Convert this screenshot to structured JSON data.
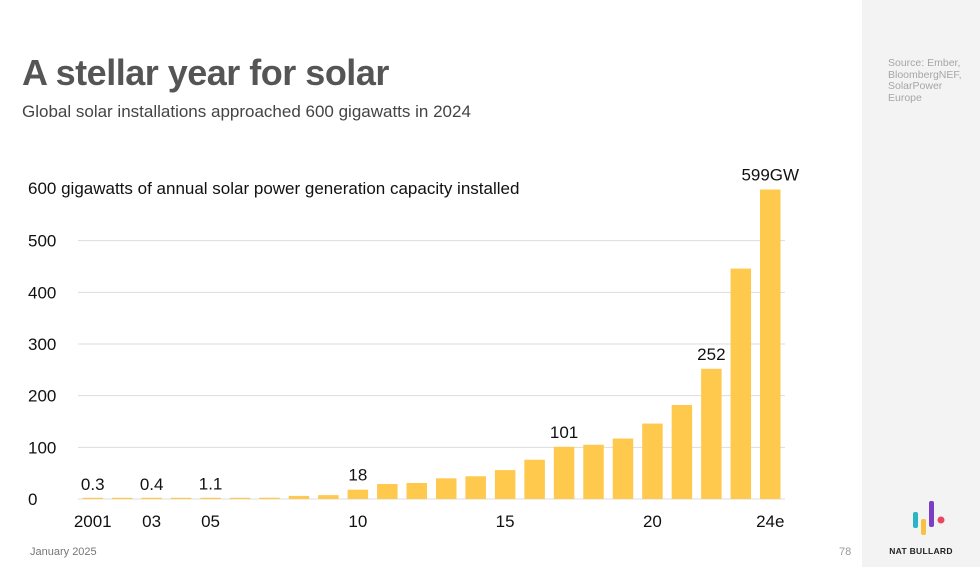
{
  "header": {
    "title": "A stellar year for solar",
    "subtitle": "Global solar installations approached 600 gigawatts in 2024"
  },
  "sidebar": {
    "source": "Source: Ember, BloombergNEF, SolarPower Europe",
    "brand": "NAT BULLARD",
    "logo_colors": [
      "#2bb5c4",
      "#f5c242",
      "#7b3fc7",
      "#e8475f"
    ]
  },
  "footer": {
    "date": "January 2025",
    "page": "78"
  },
  "chart_data": {
    "type": "bar",
    "title": "600 gigawatts of annual solar power generation capacity installed",
    "categories": [
      "2001",
      "2002",
      "2003",
      "2004",
      "2005",
      "2006",
      "2007",
      "2008",
      "2009",
      "2010",
      "2011",
      "2012",
      "2013",
      "2014",
      "2015",
      "2016",
      "2017",
      "2018",
      "2019",
      "2020",
      "2021",
      "2022",
      "2023",
      "2024e"
    ],
    "tick_labels": [
      "2001",
      "",
      "03",
      "",
      "05",
      "",
      "",
      "",
      "",
      "10",
      "",
      "",
      "",
      "",
      "15",
      "",
      "",
      "",
      "",
      "20",
      "",
      "",
      "",
      "24e"
    ],
    "values": [
      0.3,
      0.4,
      0.4,
      1.0,
      1.1,
      1.5,
      2.5,
      6.0,
      7.5,
      18,
      29,
      31,
      40,
      44,
      56,
      76,
      101,
      105,
      117,
      146,
      182,
      252,
      446,
      599
    ],
    "data_labels": [
      {
        "index": 0,
        "text": "0.3"
      },
      {
        "index": 2,
        "text": "0.4"
      },
      {
        "index": 4,
        "text": "1.1"
      },
      {
        "index": 9,
        "text": "18"
      },
      {
        "index": 16,
        "text": "101"
      },
      {
        "index": 21,
        "text": "252"
      },
      {
        "index": 23,
        "text": "599GW"
      }
    ],
    "yticks": [
      0,
      100,
      200,
      300,
      400,
      500
    ],
    "ylim": [
      0,
      600
    ],
    "xlabel": "",
    "ylabel": "",
    "grid": true,
    "color": "#ffc94d",
    "gridcolor": "#dddddd"
  }
}
